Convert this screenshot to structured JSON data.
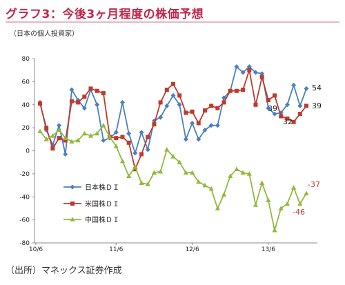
{
  "title": "グラフ3：今後3ヶ月程度の株価予想",
  "subtitle": "（日本の個人投資家）",
  "source": "（出所）マネックス証券作成",
  "chart_data": {
    "type": "line",
    "yticks": [
      "80",
      "60",
      "40",
      "20",
      "0",
      "-20",
      "-40",
      "-60",
      "-80"
    ],
    "ylim": [
      -80,
      80
    ],
    "xticks": [
      "10/6",
      "11/6",
      "12/6",
      "13/6"
    ],
    "grid": false,
    "legend": "left-middle",
    "series": [
      {
        "name": "日本株ＤＩ",
        "color": "#4a7fc1",
        "marker": "diamond",
        "values": [
          42,
          18,
          5,
          22,
          -3,
          53,
          44,
          37,
          53,
          40,
          9,
          11,
          16,
          42,
          15,
          -2,
          16,
          1,
          26,
          29,
          39,
          48,
          40,
          10,
          24,
          10,
          18,
          22,
          22,
          46,
          52,
          73,
          68,
          73,
          68,
          67,
          37,
          32,
          33,
          40,
          57,
          39,
          54
        ],
        "end_label": "54"
      },
      {
        "name": "米国株ＤＩ",
        "color": "#c0392b",
        "marker": "square",
        "values": [
          41,
          20,
          2,
          11,
          9,
          43,
          42,
          47,
          54,
          52,
          50,
          12,
          11,
          12,
          7,
          -16,
          -3,
          12,
          23,
          42,
          53,
          58,
          48,
          33,
          34,
          24,
          35,
          39,
          37,
          42,
          52,
          52,
          53,
          70,
          40,
          64,
          44,
          48,
          30,
          28,
          25,
          32,
          39
        ],
        "end_label": "39"
      },
      {
        "name": "中国株ＤＩ",
        "color": "#8fba3d",
        "marker": "triangle",
        "values": [
          17,
          10,
          13,
          18,
          11,
          8,
          9,
          15,
          13,
          15,
          22,
          12,
          4,
          -9,
          -22,
          -14,
          -28,
          -29,
          -19,
          -18,
          1,
          -5,
          -10,
          -19,
          -19,
          -27,
          -30,
          -33,
          -50,
          -38,
          -22,
          -16,
          -19,
          -20,
          -47,
          -28,
          -43,
          -69,
          -50,
          -46,
          -32,
          -46,
          -37
        ],
        "end_label": "-37"
      }
    ],
    "annotations": [
      {
        "text": "39",
        "color": "#222222"
      },
      {
        "text": "32",
        "color": "#222222"
      },
      {
        "text": "-46",
        "color": "#c0392b"
      }
    ]
  }
}
